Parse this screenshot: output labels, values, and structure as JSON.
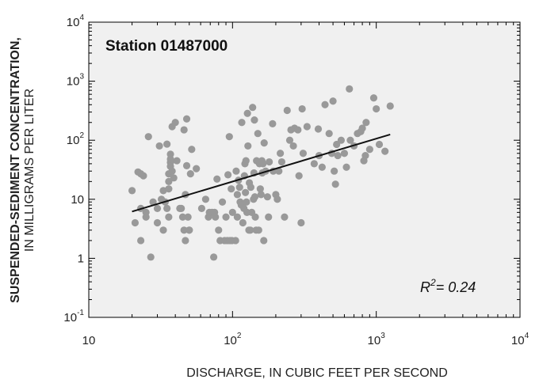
{
  "chart_data": {
    "type": "scatter",
    "x_scale": "log",
    "y_scale": "log",
    "xlim": [
      10,
      10000
    ],
    "ylim": [
      0.1,
      10000
    ],
    "xlabel": "DISCHARGE, IN CUBIC FEET PER SECOND",
    "ylabel_line1": "SUSPENDED-SEDIMENT CONCENTRATION,",
    "ylabel_line2": "IN MILLIGRAMS PER LITER",
    "annotation": "Station 01487000",
    "r2_label": "R",
    "r2_sup": "2",
    "r2_value": "= 0.24",
    "grid": false,
    "point_color": "#999999",
    "panel_color": "#f0f0f0",
    "line_color": "#111111",
    "x_ticks": [
      {
        "value": 10,
        "base": "10",
        "exp": ""
      },
      {
        "value": 100,
        "base": "10",
        "exp": "2"
      },
      {
        "value": 1000,
        "base": "10",
        "exp": "3"
      },
      {
        "value": 10000,
        "base": "10",
        "exp": "4"
      }
    ],
    "y_ticks": [
      {
        "value": 0.1,
        "base": "10",
        "exp": "-1"
      },
      {
        "value": 1,
        "base": "1",
        "exp": ""
      },
      {
        "value": 10,
        "base": "10",
        "exp": ""
      },
      {
        "value": 100,
        "base": "10",
        "exp": "2"
      },
      {
        "value": 1000,
        "base": "10",
        "exp": "3"
      },
      {
        "value": 10000,
        "base": "10",
        "exp": "4"
      }
    ],
    "regression": {
      "x": [
        20,
        1250
      ],
      "y": [
        6.2,
        125
      ]
    },
    "points": [
      [
        20,
        14
      ],
      [
        21,
        4
      ],
      [
        22,
        29
      ],
      [
        23,
        27
      ],
      [
        23,
        2
      ],
      [
        23,
        7
      ],
      [
        24,
        25
      ],
      [
        25,
        6
      ],
      [
        25,
        5
      ],
      [
        26,
        115
      ],
      [
        27,
        1.05
      ],
      [
        28,
        9
      ],
      [
        30,
        7
      ],
      [
        30,
        4
      ],
      [
        31,
        80
      ],
      [
        32,
        10
      ],
      [
        33,
        3
      ],
      [
        33,
        14
      ],
      [
        34,
        9
      ],
      [
        35,
        86
      ],
      [
        35,
        7
      ],
      [
        36,
        5
      ],
      [
        36,
        15
      ],
      [
        36,
        20
      ],
      [
        36,
        27
      ],
      [
        37,
        42
      ],
      [
        37,
        48
      ],
      [
        37,
        58
      ],
      [
        37,
        36
      ],
      [
        38,
        170
      ],
      [
        38,
        30
      ],
      [
        39,
        23
      ],
      [
        40,
        200
      ],
      [
        41,
        45
      ],
      [
        43,
        7
      ],
      [
        44,
        7
      ],
      [
        45,
        5
      ],
      [
        46,
        3
      ],
      [
        46,
        150
      ],
      [
        47,
        12
      ],
      [
        47,
        2
      ],
      [
        48,
        230
      ],
      [
        48,
        37
      ],
      [
        49,
        5
      ],
      [
        50,
        3
      ],
      [
        50,
        3
      ],
      [
        51,
        27
      ],
      [
        52,
        70
      ],
      [
        56,
        33
      ],
      [
        61,
        7
      ],
      [
        65,
        10
      ],
      [
        68,
        5
      ],
      [
        69,
        6
      ],
      [
        72,
        6
      ],
      [
        74,
        1.05
      ],
      [
        75,
        6
      ],
      [
        76,
        5
      ],
      [
        78,
        22
      ],
      [
        80,
        3
      ],
      [
        82,
        2
      ],
      [
        85,
        9
      ],
      [
        88,
        2
      ],
      [
        90,
        5
      ],
      [
        92,
        2
      ],
      [
        93,
        26
      ],
      [
        95,
        115
      ],
      [
        96,
        2
      ],
      [
        98,
        15
      ],
      [
        99,
        2
      ],
      [
        100,
        6
      ],
      [
        105,
        2
      ],
      [
        106,
        30
      ],
      [
        108,
        12
      ],
      [
        108,
        5
      ],
      [
        110,
        21
      ],
      [
        112,
        16
      ],
      [
        113,
        9
      ],
      [
        115,
        8
      ],
      [
        116,
        200
      ],
      [
        118,
        4
      ],
      [
        120,
        7
      ],
      [
        121,
        25
      ],
      [
        122,
        40
      ],
      [
        123,
        13
      ],
      [
        124,
        45
      ],
      [
        125,
        9
      ],
      [
        126,
        6
      ],
      [
        127,
        285
      ],
      [
        128,
        80
      ],
      [
        130,
        3
      ],
      [
        131,
        19
      ],
      [
        133,
        3
      ],
      [
        134,
        16
      ],
      [
        136,
        6
      ],
      [
        138,
        360
      ],
      [
        140,
        10
      ],
      [
        141,
        28
      ],
      [
        142,
        220
      ],
      [
        143,
        11
      ],
      [
        144,
        5
      ],
      [
        146,
        3
      ],
      [
        147,
        45
      ],
      [
        150,
        130
      ],
      [
        152,
        3
      ],
      [
        154,
        40
      ],
      [
        156,
        15
      ],
      [
        158,
        12
      ],
      [
        160,
        45
      ],
      [
        161,
        28
      ],
      [
        163,
        40
      ],
      [
        165,
        2
      ],
      [
        166,
        90
      ],
      [
        170,
        30
      ],
      [
        175,
        11
      ],
      [
        178,
        5
      ],
      [
        180,
        43
      ],
      [
        190,
        190
      ],
      [
        192,
        30
      ],
      [
        200,
        12
      ],
      [
        205,
        10
      ],
      [
        210,
        30
      ],
      [
        215,
        60
      ],
      [
        220,
        43
      ],
      [
        230,
        5
      ],
      [
        240,
        320
      ],
      [
        250,
        100
      ],
      [
        255,
        150
      ],
      [
        265,
        80
      ],
      [
        270,
        160
      ],
      [
        285,
        150
      ],
      [
        290,
        25
      ],
      [
        300,
        4
      ],
      [
        305,
        340
      ],
      [
        310,
        60
      ],
      [
        330,
        170
      ],
      [
        370,
        40
      ],
      [
        395,
        155
      ],
      [
        400,
        55
      ],
      [
        420,
        35
      ],
      [
        440,
        400
      ],
      [
        470,
        130
      ],
      [
        490,
        60
      ],
      [
        500,
        460
      ],
      [
        510,
        30
      ],
      [
        520,
        18
      ],
      [
        530,
        85
      ],
      [
        540,
        55
      ],
      [
        570,
        100
      ],
      [
        600,
        60
      ],
      [
        620,
        35
      ],
      [
        650,
        740
      ],
      [
        660,
        100
      ],
      [
        700,
        80
      ],
      [
        740,
        130
      ],
      [
        780,
        140
      ],
      [
        800,
        160
      ],
      [
        820,
        45
      ],
      [
        840,
        55
      ],
      [
        850,
        200
      ],
      [
        900,
        70
      ],
      [
        960,
        520
      ],
      [
        1000,
        340
      ],
      [
        1050,
        85
      ],
      [
        1150,
        65
      ],
      [
        1250,
        380
      ]
    ]
  }
}
